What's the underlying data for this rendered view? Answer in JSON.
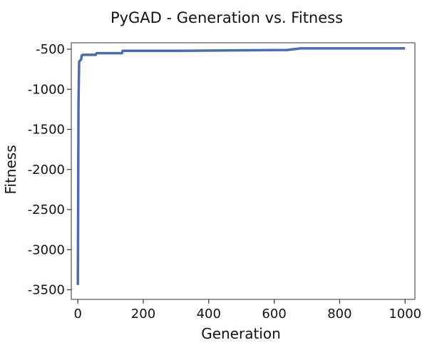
{
  "chart_data": {
    "type": "line",
    "title": "PyGAD - Generation vs. Fitness",
    "xlabel": "Generation",
    "ylabel": "Fitness",
    "xlim": [
      -20,
      1030
    ],
    "ylim": [
      -3620,
      -420
    ],
    "xticks": [
      0,
      200,
      400,
      600,
      800,
      1000
    ],
    "yticks": [
      -500,
      -1000,
      -1500,
      -2000,
      -2500,
      -3000,
      -3500
    ],
    "grid": false,
    "line_color": "#4a6cb5",
    "series": [
      {
        "x": [
          0,
          1,
          2,
          3,
          4,
          5,
          10,
          12,
          15,
          55,
          57,
          135,
          137,
          300,
          640,
          680,
          1000
        ],
        "y": [
          -3440,
          -2400,
          -1200,
          -900,
          -660,
          -650,
          -630,
          -580,
          -570,
          -570,
          -550,
          -550,
          -520,
          -520,
          -510,
          -490,
          -490
        ]
      }
    ]
  }
}
